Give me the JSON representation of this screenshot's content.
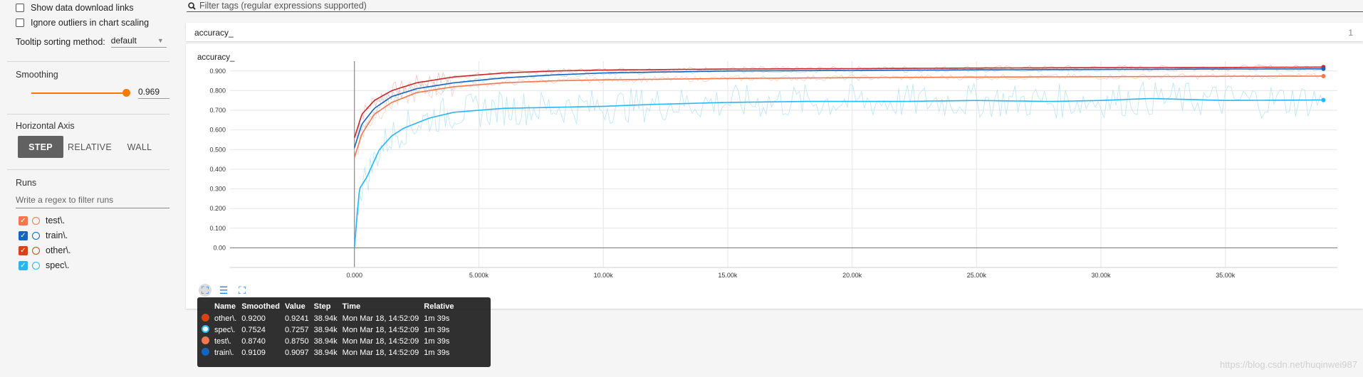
{
  "sidebar": {
    "show_download_label": "Show data download links",
    "ignore_outliers_label": "Ignore outliers in chart scaling",
    "tooltip_sort_label": "Tooltip sorting method:",
    "tooltip_sort_value": "default",
    "smoothing_label": "Smoothing",
    "smoothing_value": "0.969",
    "smoothing_fraction": 0.969,
    "horizontal_axis_label": "Horizontal Axis",
    "axis_options": [
      "STEP",
      "RELATIVE",
      "WALL"
    ],
    "axis_selected": "STEP",
    "runs_label": "Runs",
    "runs_filter_placeholder": "Write a regex to filter runs",
    "runs": [
      {
        "name": "test\\.",
        "color": "#f4774d",
        "checked": true
      },
      {
        "name": "train\\.",
        "color": "#1565c0",
        "checked": true
      },
      {
        "name": "other\\.",
        "color": "#d84315",
        "checked": true
      },
      {
        "name": "spec\\.",
        "color": "#29b6f6",
        "checked": true
      }
    ]
  },
  "filter": {
    "placeholder": "Filter tags (regular expressions supported)"
  },
  "tag_group": {
    "title": "accuracy_",
    "count": "1"
  },
  "card": {
    "title": "accuracy_"
  },
  "chart_data": {
    "type": "line",
    "title": "accuracy_",
    "xlabel": "",
    "ylabel": "",
    "x_ticks": [
      "0.000",
      "5.000k",
      "10.00k",
      "15.00k",
      "20.00k",
      "25.00k",
      "30.00k",
      "35.00k"
    ],
    "y_ticks": [
      "0.00",
      "0.100",
      "0.200",
      "0.300",
      "0.400",
      "0.500",
      "0.600",
      "0.700",
      "0.800",
      "0.900"
    ],
    "xlim": [
      -5000,
      39500
    ],
    "ylim": [
      -0.1,
      0.95
    ],
    "grid": true,
    "series": [
      {
        "name": "other\\.",
        "color": "#c62828",
        "x": [
          0,
          300,
          800,
          1500,
          2500,
          4000,
          6000,
          8000,
          10000,
          15000,
          20000,
          25000,
          30000,
          35000,
          38940
        ],
        "y": [
          0.56,
          0.68,
          0.75,
          0.8,
          0.84,
          0.87,
          0.89,
          0.9,
          0.905,
          0.91,
          0.912,
          0.915,
          0.917,
          0.918,
          0.92
        ]
      },
      {
        "name": "train\\.",
        "color": "#1565c0",
        "x": [
          0,
          300,
          800,
          1500,
          2500,
          4000,
          6000,
          8000,
          10000,
          15000,
          20000,
          25000,
          30000,
          35000,
          38940
        ],
        "y": [
          0.51,
          0.63,
          0.71,
          0.77,
          0.81,
          0.84,
          0.865,
          0.88,
          0.89,
          0.9,
          0.903,
          0.906,
          0.908,
          0.91,
          0.9109
        ]
      },
      {
        "name": "test\\.",
        "color": "#f4774d",
        "x": [
          0,
          300,
          800,
          1500,
          2500,
          4000,
          6000,
          8000,
          10000,
          15000,
          20000,
          25000,
          30000,
          35000,
          38940
        ],
        "y": [
          0.46,
          0.58,
          0.68,
          0.74,
          0.79,
          0.82,
          0.84,
          0.85,
          0.855,
          0.862,
          0.866,
          0.869,
          0.871,
          0.873,
          0.874
        ]
      },
      {
        "name": "spec\\.",
        "color": "#29b6f6",
        "x": [
          0,
          200,
          500,
          1000,
          1500,
          2000,
          3000,
          4000,
          5000,
          6000,
          8000,
          10000,
          12000,
          15000,
          18000,
          20000,
          22000,
          25000,
          28000,
          30000,
          32000,
          35000,
          38940
        ],
        "y": [
          0.0,
          0.3,
          0.36,
          0.5,
          0.57,
          0.61,
          0.66,
          0.69,
          0.7,
          0.71,
          0.715,
          0.72,
          0.73,
          0.74,
          0.745,
          0.745,
          0.745,
          0.75,
          0.745,
          0.75,
          0.76,
          0.75,
          0.7524
        ]
      }
    ]
  },
  "tooltip": {
    "headers": [
      "Name",
      "Smoothed",
      "Value",
      "Step",
      "Time",
      "Relative"
    ],
    "rows": [
      {
        "name": "other\\.",
        "smoothed": "0.9200",
        "value": "0.9241",
        "step": "38.94k",
        "time": "Mon Mar 18, 14:52:09",
        "relative": "1m 39s",
        "color": "#d84315"
      },
      {
        "name": "spec\\.",
        "smoothed": "0.7524",
        "value": "0.7257",
        "step": "38.94k",
        "time": "Mon Mar 18, 14:52:09",
        "relative": "1m 39s",
        "color": "#29b6f6"
      },
      {
        "name": "test\\.",
        "smoothed": "0.8740",
        "value": "0.8750",
        "step": "38.94k",
        "time": "Mon Mar 18, 14:52:09",
        "relative": "1m 39s",
        "color": "#f4774d"
      },
      {
        "name": "train\\.",
        "smoothed": "0.9109",
        "value": "0.9097",
        "step": "38.94k",
        "time": "Mon Mar 18, 14:52:09",
        "relative": "1m 39s",
        "color": "#1565c0"
      }
    ]
  },
  "watermark": "https://blog.csdn.net/huqinwei987"
}
